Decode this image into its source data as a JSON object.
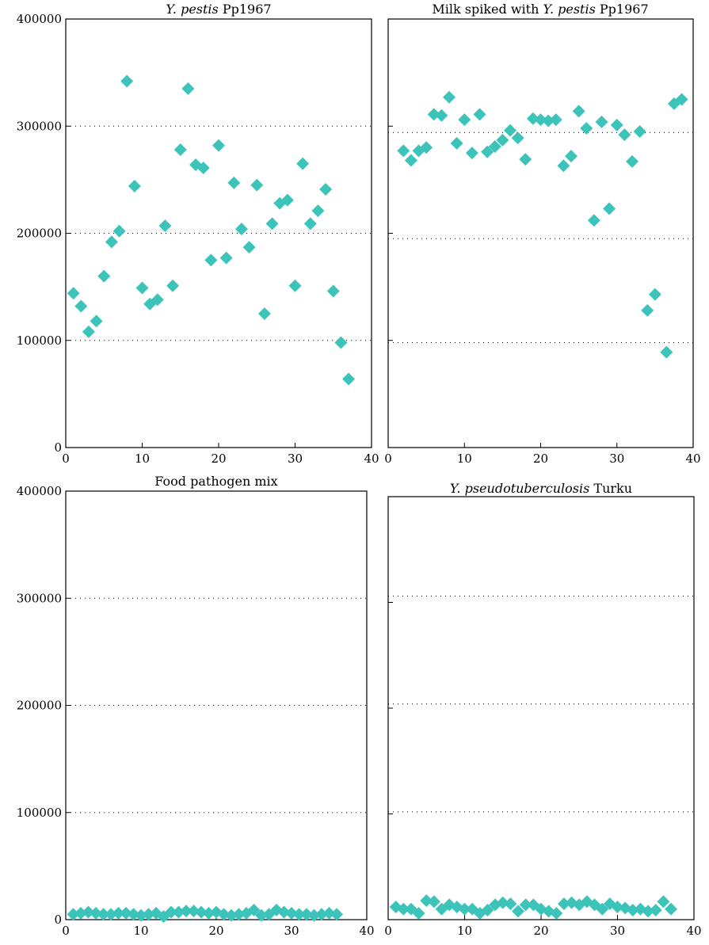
{
  "figure": {
    "marker_color": "#3cc4bb"
  },
  "chart_data": [
    {
      "type": "scatter",
      "title_parts": [
        {
          "text": "Y. pestis",
          "italic": true
        },
        {
          "text": " Pp1967",
          "italic": false
        }
      ],
      "xlim": [
        0,
        40
      ],
      "ylim": [
        0,
        400000
      ],
      "xticks": [
        0,
        10,
        20,
        30,
        40
      ],
      "yticks": [
        0,
        100000,
        200000,
        300000,
        400000
      ],
      "show_yticklabels": true,
      "grid_y": [
        100000,
        200000,
        300000
      ],
      "x": [
        1,
        2,
        3,
        4,
        5,
        6,
        7,
        8,
        9,
        10,
        11,
        12,
        13,
        14,
        15,
        16,
        17,
        18,
        19,
        20,
        21,
        22,
        23,
        24,
        25,
        26,
        27,
        28,
        29,
        30,
        31,
        32,
        33,
        34,
        35,
        36,
        37
      ],
      "y": [
        144000,
        132000,
        108000,
        118000,
        160000,
        192000,
        202000,
        342000,
        244000,
        149000,
        134000,
        138000,
        207000,
        151000,
        278000,
        335000,
        264000,
        261000,
        175000,
        282000,
        177000,
        247000,
        204000,
        187000,
        245000,
        125000,
        209000,
        228000,
        231000,
        151000,
        265000,
        209000,
        221000,
        241000,
        146000,
        98000,
        64000
      ]
    },
    {
      "type": "scatter",
      "title_parts": [
        {
          "text": "Milk spiked with ",
          "italic": false
        },
        {
          "text": "Y. pestis",
          "italic": true
        },
        {
          "text": " Pp1967",
          "italic": false
        }
      ],
      "xlim": [
        0,
        40
      ],
      "ylim": [
        0,
        400000
      ],
      "xticks": [
        0,
        10,
        20,
        30,
        40
      ],
      "yticks": [
        0,
        100000,
        200000,
        300000,
        400000
      ],
      "show_yticklabels": false,
      "grid_y": [
        98000,
        195000,
        294000
      ],
      "x": [
        2,
        3,
        4,
        5,
        6,
        7,
        8,
        9,
        10,
        11,
        12,
        13,
        14,
        15,
        16,
        17,
        18,
        19,
        20,
        21,
        22,
        23,
        24,
        25,
        26,
        27,
        28,
        29,
        30,
        31,
        32,
        33,
        34,
        35,
        36.5,
        37.5,
        38.5
      ],
      "y": [
        277000,
        268000,
        277000,
        280000,
        311000,
        310000,
        327000,
        284000,
        306000,
        275000,
        311000,
        276000,
        281000,
        287000,
        296000,
        289000,
        269000,
        307000,
        306000,
        305000,
        306000,
        263000,
        272000,
        314000,
        298000,
        212000,
        304000,
        223000,
        301000,
        292000,
        267000,
        295000,
        128000,
        143000,
        89000,
        321000,
        325000
      ]
    },
    {
      "type": "scatter",
      "title_parts": [
        {
          "text": "Food pathogen mix",
          "italic": false
        }
      ],
      "xlim": [
        0,
        40
      ],
      "ylim": [
        0,
        400000
      ],
      "xticks": [
        0,
        10,
        20,
        30,
        40
      ],
      "yticks": [
        0,
        100000,
        200000,
        300000,
        400000
      ],
      "show_yticklabels": true,
      "grid_y": [
        100000,
        200000,
        300000
      ],
      "x": [
        1,
        2,
        3,
        4,
        5,
        6,
        7,
        8,
        9,
        10,
        11,
        12,
        13,
        14,
        15,
        16,
        17,
        18,
        19,
        20,
        21,
        22,
        23,
        24,
        25,
        26,
        27,
        28,
        29,
        30,
        31,
        32,
        33,
        34,
        35,
        36
      ],
      "y": [
        5000,
        6000,
        7000,
        6000,
        5000,
        5000,
        6000,
        6000,
        5000,
        4000,
        5000,
        6000,
        3000,
        7000,
        7000,
        8000,
        8000,
        7000,
        6000,
        7000,
        5000,
        4000,
        5000,
        6000,
        9000,
        4000,
        5000,
        9000,
        7000,
        6000,
        5000,
        5000,
        4000,
        5000,
        6000,
        5000
      ]
    },
    {
      "type": "scatter",
      "title_parts": [
        {
          "text": "Y. pseudotuberculosis",
          "italic": true
        },
        {
          "text": " Turku",
          "italic": false
        }
      ],
      "xlim": [
        0,
        40
      ],
      "ylim": [
        0,
        400000
      ],
      "xticks": [
        0,
        10,
        20,
        30,
        40
      ],
      "yticks": [
        0,
        100000,
        200000,
        300000,
        400000
      ],
      "show_yticklabels": false,
      "grid_y": [
        102000,
        204000,
        306000
      ],
      "x": [
        1,
        2,
        3,
        4,
        5,
        6,
        7,
        8,
        9,
        10,
        11,
        12,
        13,
        14,
        15,
        16,
        17,
        18,
        19,
        20,
        21,
        22,
        23,
        24,
        25,
        26,
        27,
        28,
        29,
        30,
        31,
        32,
        33,
        34,
        35,
        36,
        37
      ],
      "y": [
        12000,
        10000,
        10000,
        6000,
        18000,
        17000,
        10000,
        14000,
        12000,
        10000,
        10000,
        6000,
        9000,
        14000,
        16000,
        15000,
        8000,
        14000,
        14000,
        10000,
        8000,
        6000,
        15000,
        16000,
        14000,
        17000,
        14000,
        10000,
        15000,
        12000,
        11000,
        9000,
        10000,
        8000,
        9000,
        17000,
        10000
      ]
    }
  ]
}
